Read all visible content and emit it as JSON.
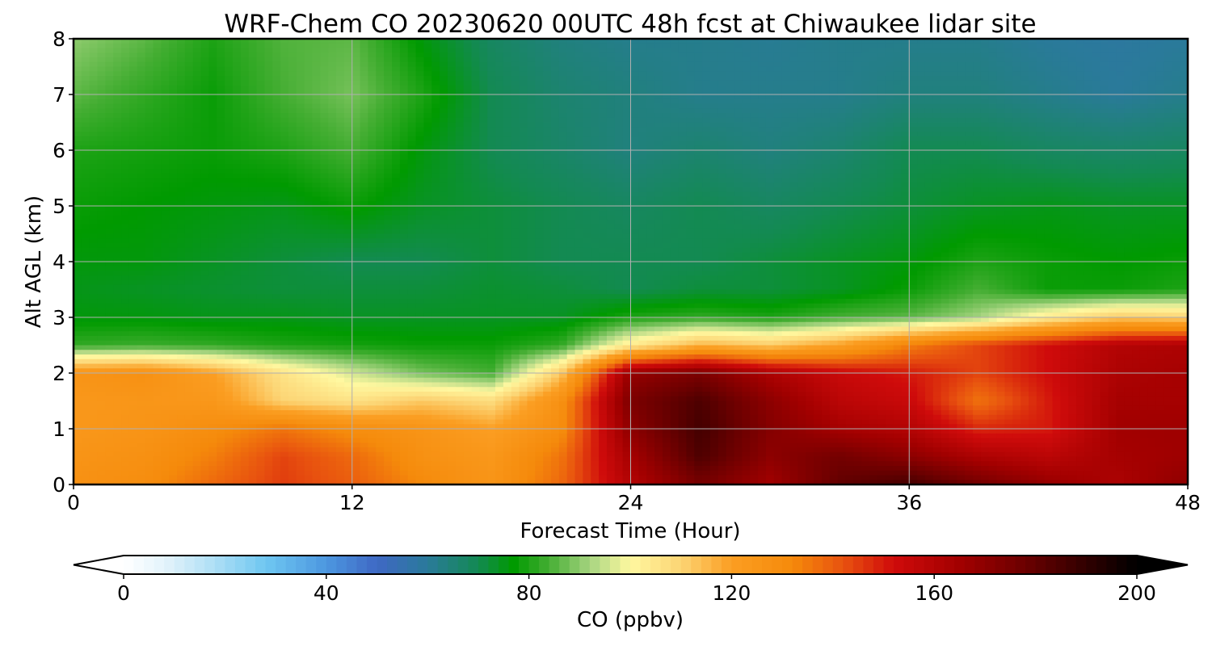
{
  "chart_data": {
    "type": "heatmap",
    "title": "WRF-Chem CO  20230620 00UTC 48h fcst at Chiwaukee lidar site",
    "xlabel": "Forecast Time (Hour)",
    "ylabel": "Alt AGL (km)",
    "xlim": [
      0,
      48
    ],
    "ylim": [
      0,
      8
    ],
    "xticks": [
      0,
      12,
      24,
      36,
      48
    ],
    "yticks": [
      0,
      1,
      2,
      3,
      4,
      5,
      6,
      7,
      8
    ],
    "grid": true,
    "x_hours": [
      0,
      3,
      6,
      9,
      12,
      15,
      18,
      21,
      24,
      27,
      30,
      33,
      36,
      39,
      42,
      45,
      48
    ],
    "y_km": [
      0,
      0.5,
      1,
      1.5,
      2,
      2.5,
      3,
      3.5,
      4,
      5,
      6,
      7,
      8
    ],
    "z_ppbv": [
      [
        128,
        130,
        138,
        145,
        140,
        132,
        126,
        138,
        160,
        175,
        165,
        180,
        186,
        176,
        168,
        162,
        170
      ],
      [
        126,
        128,
        134,
        144,
        138,
        128,
        124,
        136,
        164,
        184,
        170,
        176,
        170,
        162,
        158,
        164,
        166
      ],
      [
        124,
        126,
        130,
        136,
        130,
        126,
        120,
        130,
        170,
        186,
        172,
        164,
        160,
        148,
        150,
        165,
        166
      ],
      [
        124,
        125,
        124,
        110,
        106,
        112,
        108,
        128,
        174,
        184,
        170,
        158,
        154,
        136,
        150,
        164,
        164
      ],
      [
        126,
        128,
        120,
        106,
        96,
        88,
        84,
        112,
        168,
        174,
        162,
        154,
        150,
        144,
        152,
        162,
        164
      ],
      [
        82,
        83,
        82,
        80,
        79,
        78,
        78,
        82,
        104,
        116,
        112,
        120,
        134,
        144,
        152,
        160,
        162
      ],
      [
        76,
        76,
        75,
        75,
        74,
        74,
        74,
        74,
        80,
        82,
        80,
        84,
        86,
        92,
        104,
        112,
        110
      ],
      [
        75,
        74,
        73,
        72,
        72,
        72,
        73,
        72,
        70,
        72,
        72,
        74,
        78,
        84,
        78,
        78,
        80
      ],
      [
        76,
        76,
        74,
        72,
        70,
        70,
        72,
        70,
        70,
        70,
        72,
        74,
        76,
        80,
        78,
        77,
        78
      ],
      [
        78,
        77,
        76,
        75,
        78,
        74,
        72,
        70,
        68,
        70,
        68,
        70,
        72,
        74,
        75,
        74,
        74
      ],
      [
        80,
        79,
        78,
        80,
        84,
        76,
        70,
        67,
        64,
        66,
        64,
        66,
        70,
        70,
        68,
        67,
        68
      ],
      [
        86,
        82,
        78,
        84,
        88,
        80,
        70,
        66,
        64,
        62,
        62,
        62,
        64,
        64,
        62,
        60,
        62
      ],
      [
        90,
        86,
        80,
        85,
        86,
        76,
        68,
        64,
        62,
        62,
        61,
        62,
        62,
        62,
        60,
        59,
        60
      ]
    ],
    "colorbar": {
      "label": "CO  (ppbv)",
      "min": 0,
      "max": 200,
      "ticks": [
        0,
        40,
        80,
        120,
        160,
        200
      ],
      "extend": "both",
      "stops": [
        [
          0,
          "#ffffff"
        ],
        [
          8,
          "#e4f3fb"
        ],
        [
          16,
          "#b9e3f6"
        ],
        [
          28,
          "#6fc7f1"
        ],
        [
          40,
          "#4c97e0"
        ],
        [
          50,
          "#3f68c4"
        ],
        [
          60,
          "#2a7a9a"
        ],
        [
          70,
          "#138a52"
        ],
        [
          77,
          "#009a00"
        ],
        [
          84,
          "#45ae33"
        ],
        [
          92,
          "#a6d480"
        ],
        [
          100,
          "#fff8a0"
        ],
        [
          110,
          "#fcd474"
        ],
        [
          120,
          "#fb9e22"
        ],
        [
          132,
          "#f58a0b"
        ],
        [
          142,
          "#e8520f"
        ],
        [
          152,
          "#cf0b0b"
        ],
        [
          165,
          "#a20000"
        ],
        [
          178,
          "#6b0000"
        ],
        [
          190,
          "#300000"
        ],
        [
          200,
          "#000000"
        ]
      ]
    }
  }
}
